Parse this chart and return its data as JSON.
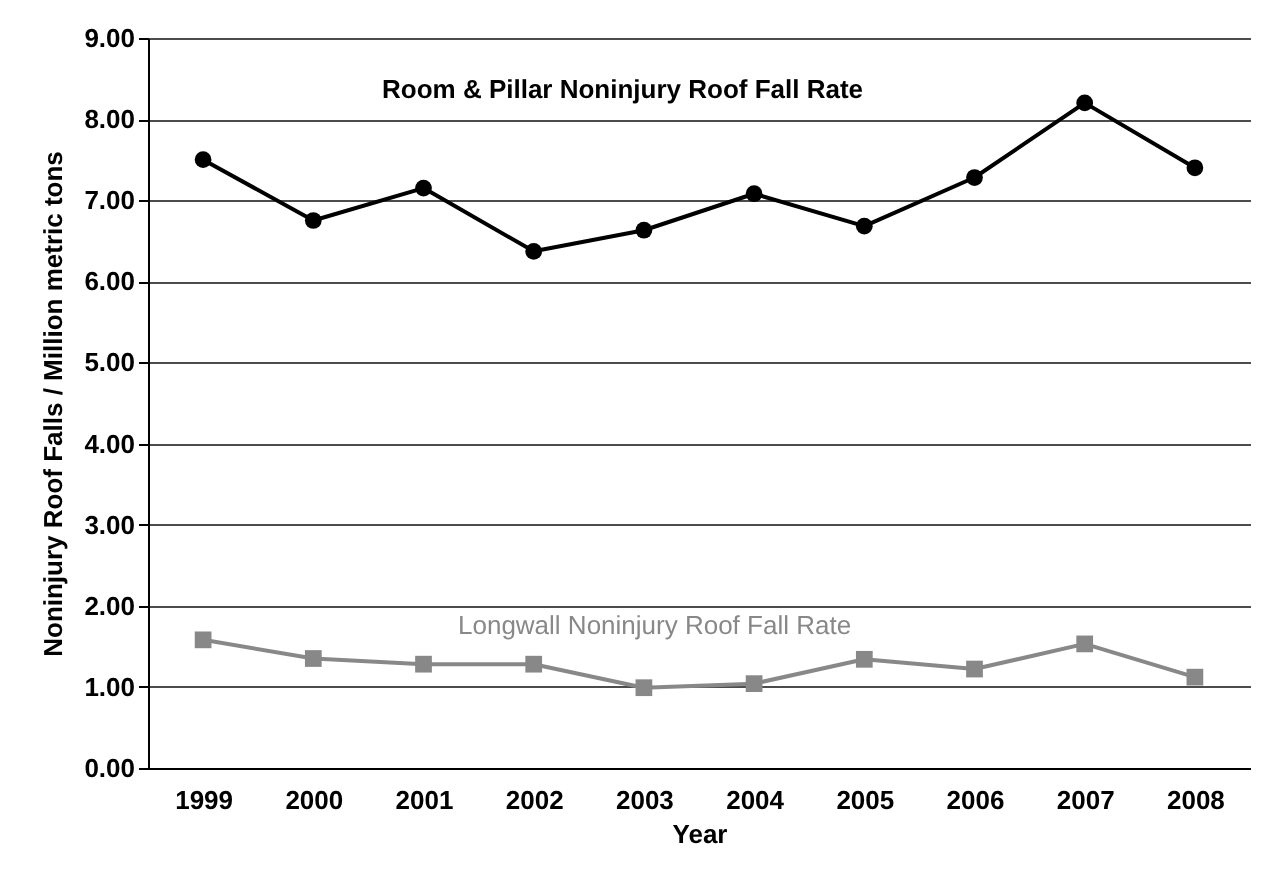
{
  "chart_data": {
    "type": "line",
    "xlabel": "Year",
    "ylabel": "Noninjury Roof Falls / Million metric tons",
    "categories": [
      "1999",
      "2000",
      "2001",
      "2002",
      "2003",
      "2004",
      "2005",
      "2006",
      "2007",
      "2008"
    ],
    "series": [
      {
        "name": "Room & Pillar Noninjury Roof Fall Rate",
        "color": "#000000",
        "marker": "circle",
        "values": [
          7.5,
          6.75,
          7.15,
          6.37,
          6.63,
          7.08,
          6.68,
          7.28,
          8.2,
          7.4
        ]
      },
      {
        "name": "Longwall Noninjury Roof Fall Rate",
        "color": "#888888",
        "marker": "square",
        "values": [
          1.58,
          1.35,
          1.28,
          1.28,
          0.99,
          1.04,
          1.34,
          1.22,
          1.53,
          1.12
        ]
      }
    ],
    "ylim": [
      0,
      9
    ],
    "yticks": [
      {
        "value": 0,
        "label": "0.00"
      },
      {
        "value": 1,
        "label": "1.00"
      },
      {
        "value": 2,
        "label": "2.00"
      },
      {
        "value": 3,
        "label": "3.00"
      },
      {
        "value": 4,
        "label": "4.00"
      },
      {
        "value": 5,
        "label": "5.00"
      },
      {
        "value": 6,
        "label": "6.00"
      },
      {
        "value": 7,
        "label": "7.00"
      },
      {
        "value": 8,
        "label": "8.00"
      },
      {
        "value": 9,
        "label": "9.00"
      }
    ],
    "grid": "y",
    "legend": false
  }
}
